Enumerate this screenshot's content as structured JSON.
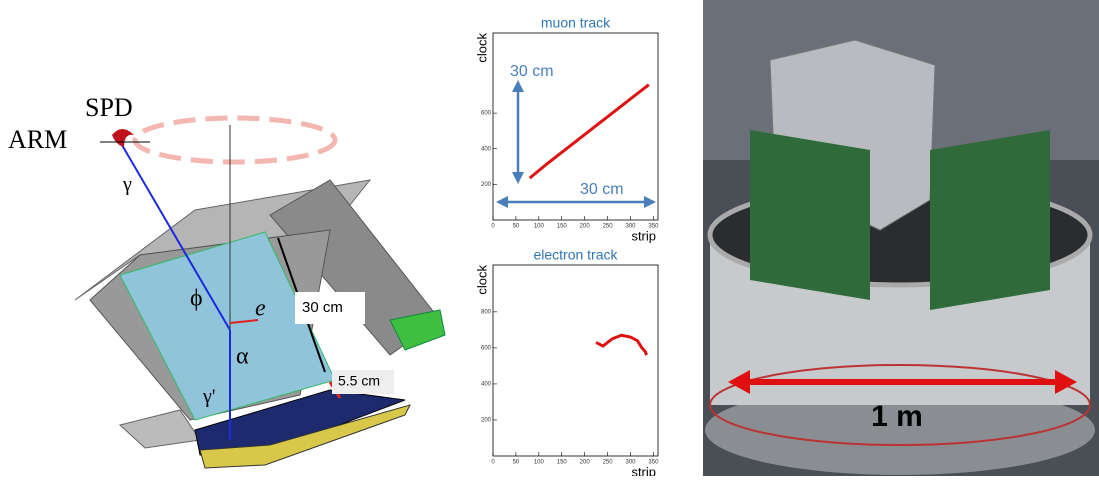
{
  "diagram": {
    "labels": {
      "spd": "SPD",
      "arm": "ARM",
      "gamma": "γ",
      "phi": "ϕ",
      "e": "e",
      "alpha": "α",
      "gamma_prime": "γ'",
      "size": "30 cm",
      "gap": "5.5 cm"
    }
  },
  "plots": [
    {
      "title": "muon track",
      "xlabel": "strip",
      "ylabel": "clock",
      "xlim": [
        0,
        360
      ],
      "ylim": [
        0,
        1050
      ],
      "xticks": [
        0,
        50,
        100,
        150,
        200,
        250,
        300,
        350
      ],
      "yticks": [
        200,
        400,
        600
      ],
      "track": {
        "x": [
          80,
          120,
          160,
          200,
          240,
          280,
          320,
          340
        ],
        "y": [
          235,
          320,
          400,
          480,
          560,
          640,
          720,
          760
        ]
      },
      "annotations": [
        "30 cm",
        "30 cm"
      ]
    },
    {
      "title": "electron track",
      "xlabel": "strip",
      "ylabel": "clock",
      "xlim": [
        0,
        360
      ],
      "ylim": [
        0,
        1060
      ],
      "xticks": [
        0,
        50,
        100,
        150,
        200,
        250,
        300,
        350
      ],
      "yticks": [
        200,
        400,
        600,
        800
      ],
      "track": {
        "x": [
          225,
          240,
          260,
          280,
          300,
          315,
          325,
          332,
          335
        ],
        "y": [
          630,
          610,
          650,
          670,
          660,
          640,
          600,
          580,
          560
        ]
      },
      "annotations": []
    }
  ],
  "photo": {
    "label": "1 m"
  }
}
